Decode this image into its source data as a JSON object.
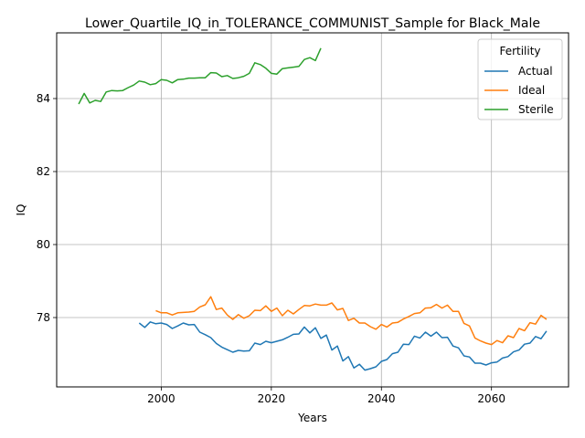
{
  "chart_data": {
    "type": "line",
    "title": "Lower_Quartile_IQ_in_TOLERANCE_COMMUNIST_Sample for Black_Male",
    "xlabel": "Years",
    "ylabel": "IQ",
    "xlim": [
      1981,
      2074
    ],
    "ylim": [
      76.1,
      85.8
    ],
    "xticks": [
      2000,
      2020,
      2040,
      2060
    ],
    "yticks": [
      78,
      80,
      82,
      84
    ],
    "grid": true,
    "legend": {
      "title": "Fertility",
      "placement": "top-right"
    },
    "series": [
      {
        "name": "Actual",
        "color": "#1f77b4",
        "x": [
          1996,
          1997,
          1998,
          1999,
          2000,
          2001,
          2002,
          2003,
          2004,
          2005,
          2006,
          2007,
          2008,
          2009,
          2010,
          2011,
          2012,
          2013,
          2014,
          2015,
          2016,
          2017,
          2018,
          2019,
          2020,
          2021,
          2022,
          2023,
          2024,
          2025,
          2026,
          2027,
          2028,
          2029,
          2030,
          2031,
          2032,
          2033,
          2034,
          2035,
          2036,
          2037,
          2038,
          2039,
          2040,
          2041,
          2042,
          2043,
          2044,
          2045,
          2046,
          2047,
          2048,
          2049,
          2050,
          2051,
          2052,
          2053,
          2054,
          2055,
          2056,
          2057,
          2058,
          2059,
          2060,
          2061,
          2062,
          2063,
          2064,
          2065,
          2066,
          2067,
          2068,
          2069,
          2070
        ],
        "values": [
          77.85,
          77.73,
          77.88,
          77.83,
          77.85,
          77.81,
          77.7,
          77.77,
          77.85,
          77.8,
          77.81,
          77.6,
          77.53,
          77.45,
          77.29,
          77.19,
          77.12,
          77.05,
          77.1,
          77.08,
          77.09,
          77.3,
          77.26,
          77.35,
          77.31,
          77.35,
          77.39,
          77.46,
          77.54,
          77.55,
          77.74,
          77.58,
          77.72,
          77.43,
          77.52,
          77.11,
          77.22,
          76.81,
          76.93,
          76.62,
          76.72,
          76.56,
          76.6,
          76.65,
          76.8,
          76.85,
          77.01,
          77.05,
          77.27,
          77.26,
          77.49,
          77.44,
          77.6,
          77.49,
          77.6,
          77.45,
          77.46,
          77.22,
          77.17,
          76.95,
          76.92,
          76.75,
          76.75,
          76.7,
          76.76,
          76.78,
          76.89,
          76.93,
          77.06,
          77.11,
          77.27,
          77.3,
          77.48,
          77.42,
          77.63
        ]
      },
      {
        "name": "Ideal",
        "color": "#ff7f0e",
        "x": [
          1999,
          2000,
          2001,
          2002,
          2003,
          2004,
          2005,
          2006,
          2007,
          2008,
          2009,
          2010,
          2011,
          2012,
          2013,
          2014,
          2015,
          2016,
          2017,
          2018,
          2019,
          2020,
          2021,
          2022,
          2023,
          2024,
          2025,
          2026,
          2027,
          2028,
          2029,
          2030,
          2031,
          2032,
          2033,
          2034,
          2035,
          2036,
          2037,
          2038,
          2039,
          2040,
          2041,
          2042,
          2043,
          2044,
          2045,
          2046,
          2047,
          2048,
          2049,
          2050,
          2051,
          2052,
          2053,
          2054,
          2055,
          2056,
          2057,
          2058,
          2059,
          2060,
          2061,
          2062,
          2063,
          2064,
          2065,
          2066,
          2067,
          2068,
          2069,
          2070
        ],
        "values": [
          78.19,
          78.13,
          78.13,
          78.07,
          78.13,
          78.14,
          78.15,
          78.17,
          78.29,
          78.35,
          78.57,
          78.22,
          78.26,
          78.07,
          77.95,
          78.08,
          77.98,
          78.05,
          78.2,
          78.19,
          78.32,
          78.17,
          78.26,
          78.05,
          78.2,
          78.1,
          78.22,
          78.33,
          78.32,
          78.37,
          78.34,
          78.34,
          78.4,
          78.21,
          78.25,
          77.92,
          77.98,
          77.85,
          77.85,
          77.75,
          77.68,
          77.81,
          77.74,
          77.85,
          77.87,
          77.96,
          78.03,
          78.11,
          78.13,
          78.26,
          78.27,
          78.36,
          78.26,
          78.34,
          78.17,
          78.17,
          77.84,
          77.77,
          77.44,
          77.36,
          77.3,
          77.26,
          77.37,
          77.31,
          77.5,
          77.45,
          77.7,
          77.64,
          77.86,
          77.82,
          78.06,
          77.95
        ]
      },
      {
        "name": "Sterile",
        "color": "#2ca02c",
        "x": [
          1985,
          1986,
          1987,
          1988,
          1989,
          1990,
          1991,
          1992,
          1993,
          1994,
          1995,
          1996,
          1997,
          1998,
          1999,
          2000,
          2001,
          2002,
          2003,
          2004,
          2005,
          2006,
          2007,
          2008,
          2009,
          2010,
          2011,
          2012,
          2013,
          2014,
          2015,
          2016,
          2017,
          2018,
          2019,
          2020,
          2021,
          2022,
          2023,
          2024,
          2025,
          2026,
          2027,
          2028,
          2029
        ],
        "values": [
          83.85,
          84.14,
          83.88,
          83.95,
          83.92,
          84.18,
          84.22,
          84.21,
          84.22,
          84.3,
          84.37,
          84.48,
          84.45,
          84.38,
          84.41,
          84.52,
          84.5,
          84.43,
          84.52,
          84.53,
          84.56,
          84.56,
          84.57,
          84.57,
          84.71,
          84.7,
          84.6,
          84.63,
          84.55,
          84.57,
          84.61,
          84.69,
          84.98,
          84.93,
          84.83,
          84.69,
          84.67,
          84.82,
          84.84,
          84.86,
          84.88,
          85.07,
          85.12,
          85.04,
          85.38
        ]
      }
    ]
  }
}
